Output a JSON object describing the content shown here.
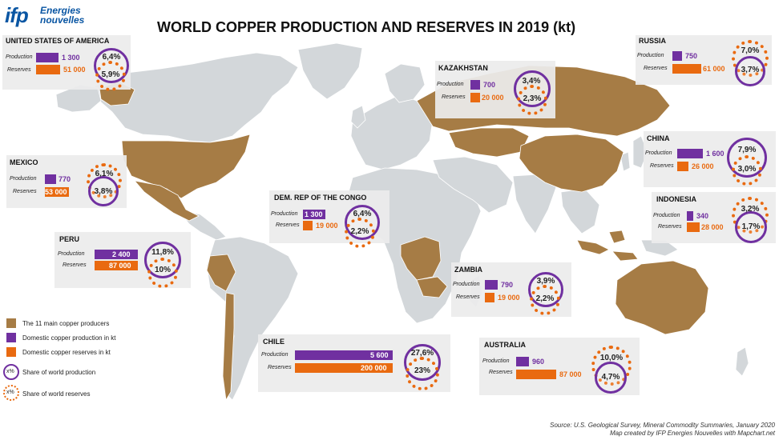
{
  "title": "WORLD COPPER PRODUCTION AND RESERVES IN 2019 (kt)",
  "logo": {
    "mark": "ifp",
    "line1": "Energies",
    "line2": "nouvelles"
  },
  "colors": {
    "land": "#d3d7da",
    "producer": "#a67c45",
    "production": "#7030a0",
    "reserves": "#e96a10",
    "ocean": "#ffffff"
  },
  "row_labels": {
    "production": "Production",
    "reserves": "Reserves"
  },
  "countries": [
    {
      "id": "usa",
      "name": "UNITED STATES OF AMERICA",
      "production": "1 300",
      "reserves": "51 000",
      "prod_share": "6,4%",
      "res_share": "5,9%",
      "prod_kt": 1300,
      "res_kt": 51000
    },
    {
      "id": "mexico",
      "name": "MEXICO",
      "production": "770",
      "reserves": "53 000",
      "prod_share": "6,1%",
      "res_share": "3,8%",
      "prod_kt": 770,
      "res_kt": 53000
    },
    {
      "id": "peru",
      "name": "PERU",
      "production": "2 400",
      "reserves": "87 000",
      "prod_share": "11,8%",
      "res_share": "10%",
      "prod_kt": 2400,
      "res_kt": 87000
    },
    {
      "id": "chile",
      "name": "CHILE",
      "production": "5 600",
      "reserves": "200 000",
      "prod_share": "27,6%",
      "res_share": "23%",
      "prod_kt": 5600,
      "res_kt": 200000
    },
    {
      "id": "drc",
      "name": "DEM. REP OF THE CONGO",
      "production": "1 300",
      "reserves": "19 000",
      "prod_share": "6,4%",
      "res_share": "2,2%",
      "prod_kt": 1300,
      "res_kt": 19000
    },
    {
      "id": "zambia",
      "name": "ZAMBIA",
      "production": "790",
      "reserves": "19 000",
      "prod_share": "3,9%",
      "res_share": "2,2%",
      "prod_kt": 790,
      "res_kt": 19000
    },
    {
      "id": "kazakhstan",
      "name": "KAZAKHSTAN",
      "production": "700",
      "reserves": "20 000",
      "prod_share": "3,4%",
      "res_share": "2,3%",
      "prod_kt": 700,
      "res_kt": 20000
    },
    {
      "id": "russia",
      "name": "RUSSIA",
      "production": "750",
      "reserves": "61 000",
      "prod_share": "7,0%",
      "res_share": "3,7%",
      "prod_kt": 750,
      "res_kt": 61000
    },
    {
      "id": "china",
      "name": "CHINA",
      "production": "1 600",
      "reserves": "26 000",
      "prod_share": "7,9%",
      "res_share": "3,0%",
      "prod_kt": 1600,
      "res_kt": 26000
    },
    {
      "id": "indonesia",
      "name": "INDONESIA",
      "production": "340",
      "reserves": "28 000",
      "prod_share": "3,2%",
      "res_share": "1,7%",
      "prod_kt": 340,
      "res_kt": 28000
    },
    {
      "id": "australia",
      "name": "AUSTRALIA",
      "production": "960",
      "reserves": "87 000",
      "prod_share": "10,0%",
      "res_share": "4,7%",
      "prod_kt": 960,
      "res_kt": 87000
    }
  ],
  "legend": [
    {
      "label": "The 11 main copper producers",
      "type": "producer"
    },
    {
      "label": "Domestic copper production in kt",
      "type": "production"
    },
    {
      "label": "Domestic copper reserves in kt",
      "type": "reserves"
    },
    {
      "label": "Share of world production",
      "type": "prod-circle",
      "symbol": "x%"
    },
    {
      "label": "Share of world reserves",
      "type": "res-circle",
      "symbol": "x%"
    }
  ],
  "source": {
    "line1": "Source: U.S. Geological Survey, Mineral Commodity Summaries, January 2020",
    "line2": "Map created by IFP Energies Nouvelles with Mapchart.net"
  }
}
